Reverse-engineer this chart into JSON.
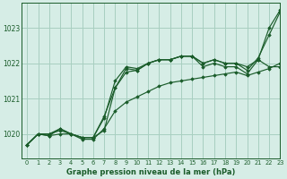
{
  "title": "Graphe pression niveau de la mer (hPa)",
  "bg_color": "#d6ede6",
  "grid_color": "#a8cfc0",
  "line_color": "#1a5c2a",
  "xlim": [
    -0.5,
    23
  ],
  "ylim": [
    1019.3,
    1023.7
  ],
  "yticks": [
    1020,
    1021,
    1022,
    1023
  ],
  "xticks": [
    0,
    1,
    2,
    3,
    4,
    5,
    6,
    7,
    8,
    9,
    10,
    11,
    12,
    13,
    14,
    15,
    16,
    17,
    18,
    19,
    20,
    21,
    22,
    23
  ],
  "series": [
    [
      1019.7,
      1020.0,
      1020.0,
      1020.1,
      1020.0,
      1019.9,
      1019.9,
      1020.1,
      1021.3,
      1021.85,
      1021.8,
      1022.0,
      1022.1,
      1022.1,
      1022.2,
      1022.2,
      1021.9,
      1022.0,
      1021.9,
      1021.9,
      1021.7,
      1022.1,
      1023.0,
      1023.5
    ],
    [
      1019.7,
      1020.0,
      1020.0,
      1020.15,
      1020.0,
      1019.9,
      1019.9,
      1020.45,
      1021.5,
      1021.9,
      1021.85,
      1022.0,
      1022.1,
      1022.1,
      1022.2,
      1022.2,
      1022.0,
      1022.1,
      1022.0,
      1022.0,
      1021.9,
      1022.1,
      1021.9,
      1021.9
    ],
    [
      1019.7,
      1020.0,
      1019.95,
      1020.0,
      1020.0,
      1019.85,
      1019.85,
      1020.15,
      1020.65,
      1020.9,
      1021.05,
      1021.2,
      1021.35,
      1021.45,
      1021.5,
      1021.55,
      1021.6,
      1021.65,
      1021.7,
      1021.75,
      1021.65,
      1021.75,
      1021.85,
      1022.0
    ],
    [
      1019.7,
      1020.0,
      1019.95,
      1020.15,
      1020.0,
      1019.9,
      1019.9,
      1020.5,
      1021.3,
      1021.75,
      1021.8,
      1022.0,
      1022.1,
      1022.1,
      1022.2,
      1022.2,
      1022.0,
      1022.1,
      1022.0,
      1022.0,
      1021.8,
      1022.15,
      1022.8,
      1023.45
    ]
  ]
}
